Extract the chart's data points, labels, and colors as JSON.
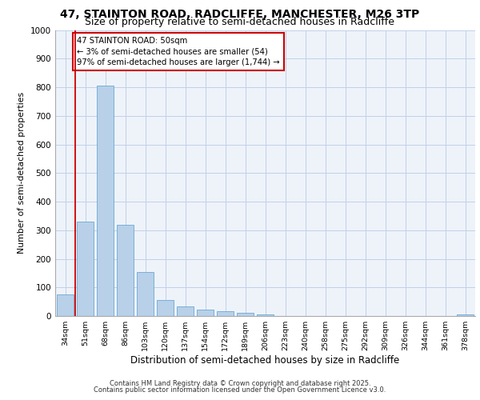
{
  "title1": "47, STAINTON ROAD, RADCLIFFE, MANCHESTER, M26 3TP",
  "title2": "Size of property relative to semi-detached houses in Radcliffe",
  "xlabel": "Distribution of semi-detached houses by size in Radcliffe",
  "ylabel": "Number of semi-detached properties",
  "categories": [
    "34sqm",
    "51sqm",
    "68sqm",
    "86sqm",
    "103sqm",
    "120sqm",
    "137sqm",
    "154sqm",
    "172sqm",
    "189sqm",
    "206sqm",
    "223sqm",
    "240sqm",
    "258sqm",
    "275sqm",
    "292sqm",
    "309sqm",
    "326sqm",
    "344sqm",
    "361sqm",
    "378sqm"
  ],
  "values": [
    75,
    330,
    805,
    320,
    155,
    57,
    33,
    22,
    17,
    12,
    5,
    0,
    0,
    0,
    0,
    0,
    0,
    0,
    0,
    0,
    5
  ],
  "bar_color": "#b8d0e8",
  "bar_edge_color": "#6aaad4",
  "highlight_color": "#cc0000",
  "annotation_line1": "47 STAINTON ROAD: 50sqm",
  "annotation_line2": "← 3% of semi-detached houses are smaller (54)",
  "annotation_line3": "97% of semi-detached houses are larger (1,744) →",
  "annotation_box_color": "#cc0000",
  "ylim": [
    0,
    1000
  ],
  "yticks": [
    0,
    100,
    200,
    300,
    400,
    500,
    600,
    700,
    800,
    900,
    1000
  ],
  "footer1": "Contains HM Land Registry data © Crown copyright and database right 2025.",
  "footer2": "Contains public sector information licensed under the Open Government Licence v3.0.",
  "bg_color": "#eef3fa",
  "grid_color": "#c0d0e8",
  "title1_fontsize": 10,
  "title2_fontsize": 9
}
